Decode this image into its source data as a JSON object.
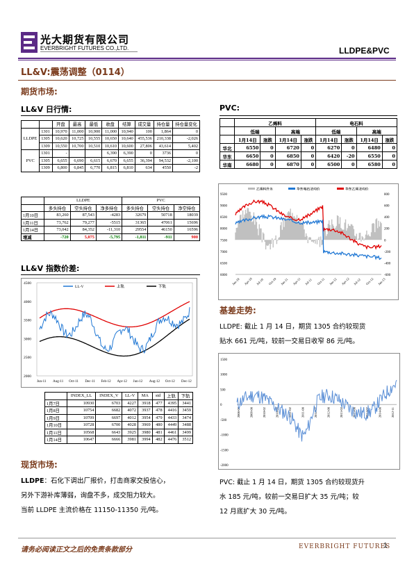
{
  "header": {
    "company_cn": "光大期货有限公司",
    "company_en": "EVERBRIGHT FUTURES CO.,LTD.",
    "product": "LLDPE&PVC"
  },
  "report_title": "LL&V:震荡调整（0114）",
  "futures_market": {
    "heading": "期货市场:",
    "daily_heading": "LL&V 日行情:",
    "daily_table": {
      "headers": [
        "",
        "",
        "开盘",
        "最高",
        "最低",
        "收盘",
        "结算",
        "成交量",
        "持仓量",
        "持仓量变化"
      ],
      "groups": [
        {
          "name": "LLDPE",
          "rows": [
            [
              "1301",
              "10,970",
              "11,000",
              "10,900",
              "11,000",
              "10,940",
              "100",
              "1,864",
              "0"
            ],
            [
              "1305",
              "10,620",
              "10,725",
              "10,555",
              "10,650",
              "10,640",
              "455,536",
              "210,338",
              "-2,026"
            ],
            [
              "1309",
              "10,550",
              "10,700",
              "10,510",
              "10,610",
              "10,600",
              "27,806",
              "43,614",
              "5,402"
            ]
          ]
        },
        {
          "name": "PVC",
          "rows": [
            [
              "1301",
              "-",
              "",
              "",
              "6,390",
              "6,390",
              "0",
              "3736",
              "0"
            ],
            [
              "1305",
              "6,655",
              "6,690",
              "6,615",
              "6,670",
              "6,655",
              "36,394",
              "94,532",
              "-2,100"
            ],
            [
              "1309",
              "6,800",
              "6,845",
              "6,770",
              "6,815",
              "6,810",
              "634",
              "4550",
              "-2"
            ]
          ]
        }
      ]
    },
    "position_table": {
      "groups": [
        "LLDPE",
        "PVC"
      ],
      "headers": [
        "多头持仓",
        "空头持仓",
        "净多持仓",
        "多头持仓",
        "空头持仓",
        "净空持仓"
      ],
      "rows": [
        {
          "date": "1月10日",
          "values": [
            "83,260",
            "87,543",
            "-4283",
            "32679",
            "50718",
            "18039"
          ]
        },
        {
          "date": "1月11日",
          "values": [
            "73,762",
            "79,277",
            "-5515",
            "31365",
            "47061",
            "15696"
          ]
        },
        {
          "date": "1月14日",
          "values": [
            "73,042",
            "84,352",
            "-11,310",
            "29554",
            "46150",
            "16596"
          ]
        }
      ],
      "change_label": "增减",
      "change": [
        "-720",
        "5,075",
        "-5,795",
        "-1,811",
        "-911",
        "900"
      ]
    },
    "index_heading": "LL&V 指数价差:",
    "index_chart": {
      "legend": [
        "LL-V",
        "上轨",
        "下轨"
      ],
      "y_ticks": [
        "4500",
        "4000",
        "3500",
        "3000",
        "2500",
        "2000"
      ],
      "x_ticks": [
        "Jun-11",
        "Aug-11",
        "Oct-11",
        "Dec-11",
        "Feb-12",
        "Apr-12",
        "Jun-12",
        "Aug-12",
        "Oct-12",
        "Dec-12"
      ]
    },
    "index_table": {
      "headers": [
        "",
        "INDEX_LL",
        "INDEX_V",
        "LL-V",
        "MA",
        "std",
        "上轨",
        "下轨"
      ],
      "rows": [
        [
          "1月7日",
          "10930",
          "6703",
          "4227",
          "3918",
          "477",
          "4395",
          "3441"
        ],
        [
          "1月8日",
          "10754",
          "6682",
          "4072",
          "3937",
          "478",
          "4416",
          "3459"
        ],
        [
          "1月9日",
          "10709",
          "6697",
          "4012",
          "3954",
          "479",
          "4433",
          "3474"
        ],
        [
          "1月10日",
          "10728",
          "6700",
          "4028",
          "3969",
          "480",
          "4449",
          "3488"
        ],
        [
          "1月11日",
          "10568",
          "6643",
          "3925",
          "3980",
          "481",
          "4461",
          "3499"
        ],
        [
          "1月14日",
          "10647",
          "6666",
          "3981",
          "3994",
          "482",
          "4476",
          "3512"
        ]
      ]
    }
  },
  "spot_market": {
    "heading": "现货市场:",
    "lldpe_label": "LLDPE",
    "lldpe_text_1": "：石化下调出厂报价，打击商家交投信心，",
    "lldpe_text_2": "另外下游补库薄弱，询盘不多，成交阻力较大。",
    "lldpe_text_3": "当前 LLDPE 主流价格在 11150-11350 元/吨。"
  },
  "pvc": {
    "heading": "PVC:",
    "table": {
      "group1": "乙烯料",
      "group2": "电石料",
      "sub": [
        "低端",
        "高端",
        "低端",
        "高端"
      ],
      "date_label": "1月14日",
      "change_label": "涨跌",
      "rows": [
        {
          "region": "华北",
          "values": [
            "6550",
            "0",
            "6720",
            "0",
            "6270",
            "0",
            "6480",
            "0"
          ]
        },
        {
          "region": "华东",
          "values": [
            "6650",
            "0",
            "6850",
            "0",
            "6420",
            "-20",
            "6550",
            "0"
          ]
        },
        {
          "region": "华南",
          "values": [
            "6680",
            "0",
            "6870",
            "0",
            "6500",
            "0",
            "6580",
            "0"
          ]
        }
      ]
    },
    "chart": {
      "legend": [
        "乙烯料升水",
        "华东电石法均价",
        "华东乙烯法均价"
      ],
      "y_left": [
        "9500",
        "9000",
        "8500",
        "8000",
        "7500",
        "7000",
        "6500",
        "6000"
      ],
      "y_right": [
        "800",
        "600",
        "400",
        "200",
        "0",
        "-200",
        "-400",
        "-600"
      ],
      "x_ticks": [
        "Jan-10",
        "Apr-10",
        "Jul-10",
        "Oct-10",
        "Jan-11",
        "Apr-11",
        "Jul-11",
        "Oct-11",
        "Jan-12",
        "Apr-12",
        "Jul-12",
        "Oct-12",
        "Jan-13"
      ]
    }
  },
  "basis": {
    "heading": "基差走势:",
    "lldpe_text_1": "LLDPE: 截止 1 月 14 日，期货 1305 合约较现货",
    "lldpe_text_2": "贴水 661 元/吨，较前一交易日收窄 86 元/吨。",
    "chart": {
      "y_ticks": [
        "1500",
        "1000",
        "500",
        "0",
        "-500",
        "-1000",
        "-1500",
        "-2000"
      ],
      "x_ticks": [
        "2008-08",
        "2009-08",
        "2010-02",
        "2010-08",
        "2011-02",
        "2011-08",
        "2012-02",
        "2012-08",
        "2013-02",
        "2013-08",
        "2014-02",
        "2014-08",
        "2012-11"
      ]
    },
    "pvc_text_1": "PVC: 截止 1 月 14 日，期货 1305 合约较现货升",
    "pvc_text_2": "水 185 元/吨，较前一交易日扩大 35 元/吨；较",
    "pvc_text_3": "12 月底扩大 30 元/吨。"
  },
  "footer": {
    "disclaimer": "请务必阅读正文之后的免责条款部分",
    "brand": "EVERBRIGHT FUTURES",
    "page": "1"
  },
  "colors": {
    "accent": "#7a3a1b",
    "brand_purple": "#5b2a86",
    "red": "#e00000",
    "green": "#007a00"
  }
}
